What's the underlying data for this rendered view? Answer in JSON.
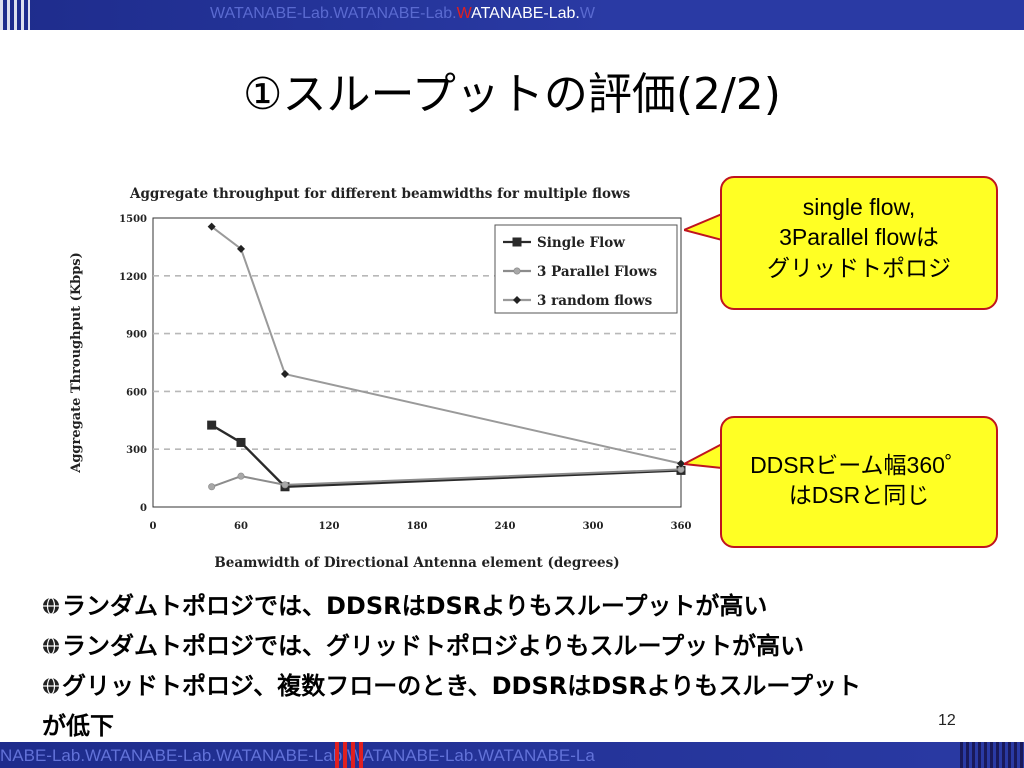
{
  "header": {
    "ticker_pre": "WATANABE-Lab.WATANABE-Lab.",
    "ticker_w": "W",
    "ticker_bright": "ATANABE-Lab.",
    "ticker_post": "W"
  },
  "slide": {
    "title": "①スループットの評価(2/2)",
    "page_number": "12"
  },
  "callouts": [
    {
      "lines": [
        "single flow,",
        "3Parallel flowは",
        "グリッドトポロジ"
      ]
    },
    {
      "lines": [
        "DDSRビーム幅360゜",
        "はDSRと同じ"
      ]
    }
  ],
  "bullets": [
    "ランダムトポロジでは、DDSRはDSRよりもスループットが高い",
    "ランダムトポロジでは、グリッドトポロジよりもスループットが高い",
    "グリッドトポロジ、複数フローのとき、DDSRはDSRよりもスループット",
    "が低下"
  ],
  "footer": {
    "ticker": "NABE-Lab.WATANABE-Lab.WATANABE-Lab.WATANABE-Lab.WATANABE-La"
  },
  "colors": {
    "bar": "#2a3aa4",
    "callout_fill": "#ffff24",
    "callout_border": "#c0141e"
  },
  "chart_data": {
    "type": "line",
    "title": "Aggregate throughput for different beamwidths for multiple flows",
    "xlabel": "Beamwidth of Directional Antenna element (degrees)",
    "ylabel": "Aggregate Throughput (Kbps)",
    "xlim": [
      0,
      360
    ],
    "ylim": [
      0,
      1500
    ],
    "xticks": [
      0,
      60,
      120,
      180,
      240,
      300,
      360
    ],
    "yticks": [
      0,
      300,
      600,
      900,
      1200,
      1500
    ],
    "grid": "horizontal dashed",
    "legend_position": "top-right",
    "series": [
      {
        "name": "Single Flow",
        "marker": "square",
        "color": "#2a2a2a",
        "x": [
          40,
          60,
          90,
          360
        ],
        "y": [
          425,
          335,
          105,
          190
        ]
      },
      {
        "name": "3 Parallel Flows",
        "marker": "dot",
        "color": "#8c8c8c",
        "x": [
          40,
          60,
          90,
          360
        ],
        "y": [
          105,
          160,
          115,
          195
        ]
      },
      {
        "name": "3 random flows",
        "marker": "diamond",
        "color": "#9a9a9a",
        "x": [
          40,
          60,
          90,
          360
        ],
        "y": [
          1455,
          1340,
          690,
          225
        ]
      }
    ]
  }
}
